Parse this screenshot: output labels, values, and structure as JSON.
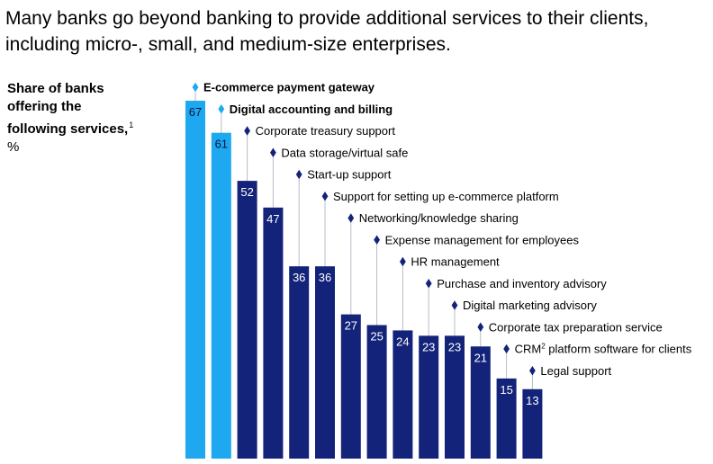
{
  "title": "Many banks go beyond banking to provide additional services to their clients, including micro-, small, and medium-size enterprises.",
  "axis_label": {
    "line1": "Share of banks",
    "line2": "offering the",
    "line3": "following services,",
    "footnote_mark": "1",
    "unit": "%"
  },
  "colors": {
    "highlight": "#1da8f0",
    "primary": "#13237a",
    "connector": "#b8bcc8",
    "value_on_highlight": "#0a1540",
    "value_on_primary": "#ffffff"
  },
  "chart_data": {
    "type": "bar",
    "ylabel": "Share of banks offering the following services, %",
    "categories": [
      "E-commerce payment gateway",
      "Digital accounting and billing",
      "Corporate treasury support",
      "Data storage/virtual safe",
      "Start-up support",
      "Support for setting up e-commerce platform",
      "Networking/knowledge sharing",
      "Expense management for employees",
      "HR management",
      "Purchase and inventory advisory",
      "Digital marketing advisory",
      "Corporate tax preparation service",
      "CRM",
      "Legal support"
    ],
    "category_suffixes": [
      "",
      "",
      "",
      "",
      "",
      "",
      "",
      "",
      "",
      "",
      "",
      "",
      " platform software for clients",
      ""
    ],
    "category_superscripts": [
      "",
      "",
      "",
      "",
      "",
      "",
      "",
      "",
      "",
      "",
      "",
      "",
      "2",
      ""
    ],
    "values": [
      67,
      61,
      52,
      47,
      36,
      36,
      27,
      25,
      24,
      23,
      23,
      21,
      15,
      13
    ],
    "highlighted": [
      true,
      true,
      false,
      false,
      false,
      false,
      false,
      false,
      false,
      false,
      false,
      false,
      false,
      false
    ],
    "ylim": [
      0,
      80
    ],
    "grid": false,
    "legend": "none"
  }
}
